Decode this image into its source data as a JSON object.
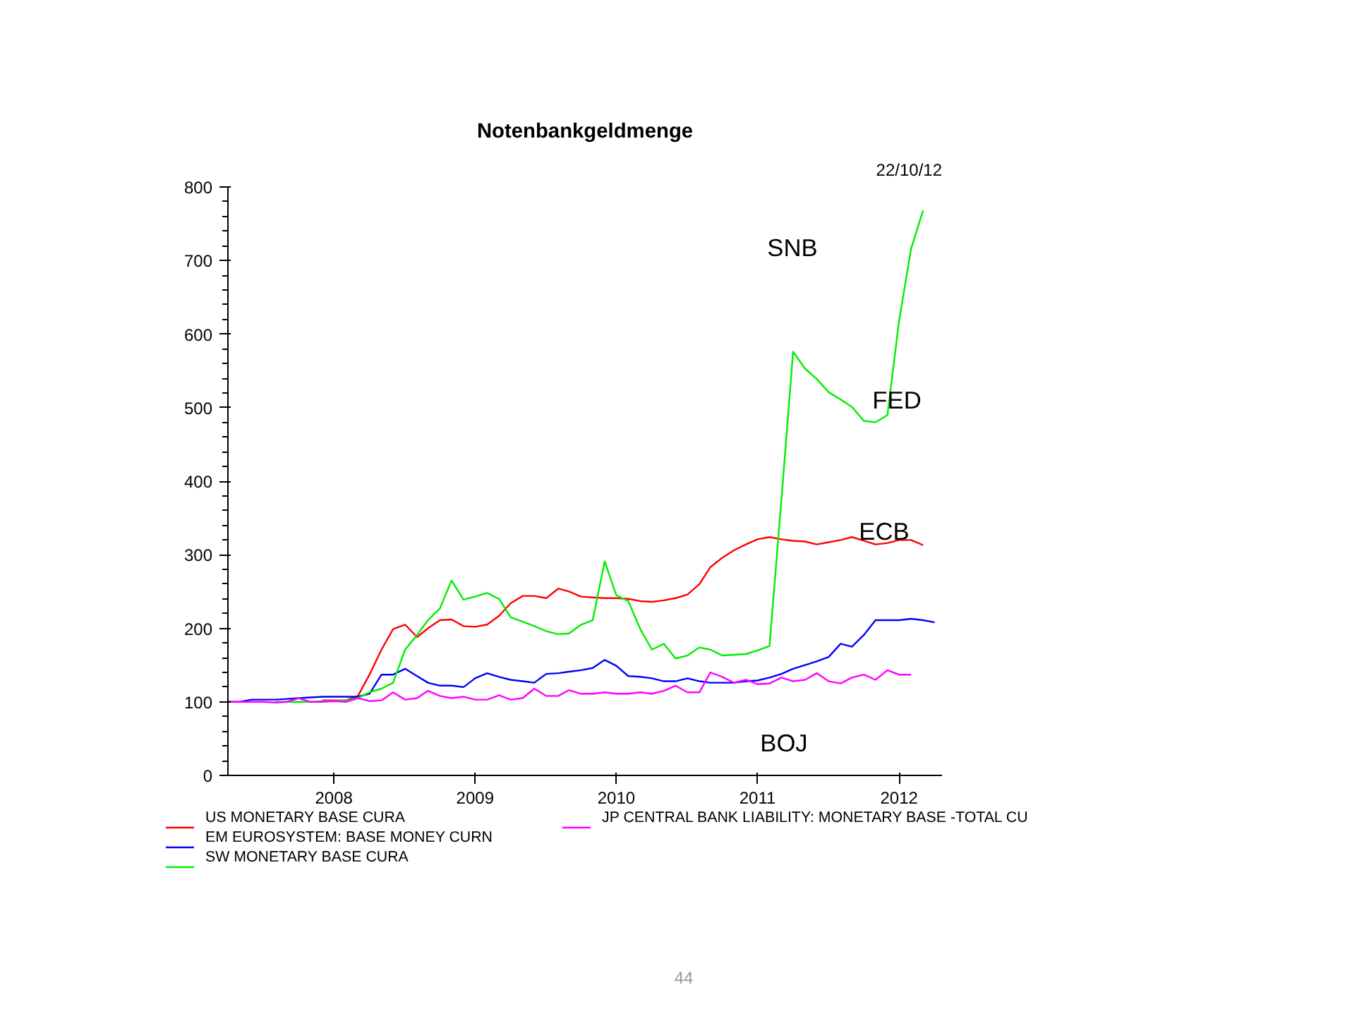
{
  "chart_data": {
    "type": "line",
    "title": "Notenbankgeldmenge",
    "subtitle": "22/10/12",
    "x": [
      "2007-10",
      "2007-11",
      "2007-12",
      "2008-01",
      "2008-02",
      "2008-03",
      "2008-04",
      "2008-05",
      "2008-06",
      "2008-07",
      "2008-08",
      "2008-09",
      "2008-10",
      "2008-11",
      "2008-12",
      "2009-01",
      "2009-02",
      "2009-03",
      "2009-04",
      "2009-05",
      "2009-06",
      "2009-07",
      "2009-08",
      "2009-09",
      "2009-10",
      "2009-11",
      "2009-12",
      "2010-01",
      "2010-02",
      "2010-03",
      "2010-04",
      "2010-05",
      "2010-06",
      "2010-07",
      "2010-08",
      "2010-09",
      "2010-10",
      "2010-11",
      "2010-12",
      "2011-01",
      "2011-02",
      "2011-03",
      "2011-04",
      "2011-05",
      "2011-06",
      "2011-07",
      "2011-08",
      "2011-09",
      "2011-10",
      "2011-11",
      "2011-12",
      "2012-01",
      "2012-02",
      "2012-03",
      "2012-04",
      "2012-05",
      "2012-06",
      "2012-07",
      "2012-08",
      "2012-09",
      "2012-10"
    ],
    "series": [
      {
        "name": "US MONETARY BASE CURA",
        "color": "#ff0000",
        "values": [
          null,
          null,
          null,
          null,
          null,
          null,
          null,
          null,
          102,
          102,
          102,
          108,
          137,
          171,
          199,
          205,
          188,
          200,
          211,
          212,
          203,
          202,
          205,
          217,
          234,
          244,
          244,
          241,
          254,
          250,
          243,
          242,
          241,
          241,
          240,
          237,
          236,
          238,
          241,
          246,
          260,
          283,
          296,
          306,
          314,
          321,
          324,
          321,
          319,
          318,
          314,
          317,
          320,
          324,
          319,
          314,
          316,
          320,
          320,
          313,
          null
        ]
      },
      {
        "name": "EM EUROSYSTEM: BASE MONEY CURN",
        "color": "#0000ff",
        "values": [
          100,
          100,
          103,
          103,
          103,
          104,
          105,
          106,
          107,
          107,
          107,
          107,
          111,
          137,
          137,
          145,
          135,
          126,
          122,
          122,
          120,
          132,
          139,
          134,
          130,
          128,
          126,
          138,
          139,
          141,
          143,
          146,
          157,
          149,
          135,
          134,
          132,
          128,
          128,
          132,
          128,
          126,
          126,
          126,
          128,
          129,
          133,
          138,
          145,
          150,
          155,
          161,
          179,
          175,
          191,
          211,
          211,
          211,
          213,
          211,
          208
        ]
      },
      {
        "name": "SW MONETARY BASE CURA",
        "color": "#00ee00",
        "values": [
          null,
          null,
          null,
          null,
          100,
          100,
          100,
          100,
          101,
          101,
          102,
          105,
          113,
          118,
          126,
          171,
          191,
          211,
          227,
          265,
          239,
          243,
          248,
          240,
          215,
          209,
          203,
          196,
          192,
          193,
          205,
          211,
          291,
          245,
          237,
          199,
          171,
          179,
          159,
          163,
          174,
          171,
          163,
          164,
          165,
          170,
          176,
          376,
          576,
          553,
          539,
          521,
          511,
          501,
          482,
          480,
          490,
          618,
          716,
          768,
          null
        ]
      },
      {
        "name": "JP CENTRAL BANK LIABILITY: MONETARY BASE -TOTAL CU",
        "color": "#ff00ff",
        "values": [
          100,
          100,
          100,
          100,
          99,
          100,
          105,
          100,
          100,
          101,
          100,
          105,
          101,
          102,
          113,
          103,
          105,
          115,
          108,
          105,
          107,
          103,
          103,
          109,
          103,
          105,
          118,
          108,
          108,
          116,
          111,
          111,
          113,
          111,
          111,
          113,
          111,
          115,
          122,
          113,
          113,
          140,
          134,
          126,
          130,
          124,
          125,
          133,
          128,
          130,
          139,
          128,
          125,
          133,
          137,
          130,
          143,
          137,
          137,
          null,
          null
        ]
      }
    ],
    "xlim": [
      "2007-10-01",
      "2012-10-20"
    ],
    "xticks": [
      {
        "value": "2008-07-01",
        "label": "2008"
      },
      {
        "value": "2009-07-01",
        "label": "2009"
      },
      {
        "value": "2010-07-01",
        "label": "2010"
      },
      {
        "value": "2011-07-01",
        "label": "2011"
      },
      {
        "value": "2012-07-01",
        "label": "2012"
      }
    ],
    "ylim": [
      0,
      800
    ],
    "yticks": [
      0,
      100,
      200,
      300,
      400,
      500,
      600,
      700,
      800
    ],
    "grid": false,
    "legend": "bottom",
    "marker": "none",
    "line_style": "solid",
    "annotations": [
      "SNB",
      "FED",
      "ECB",
      "BOJ",
      "44"
    ]
  }
}
